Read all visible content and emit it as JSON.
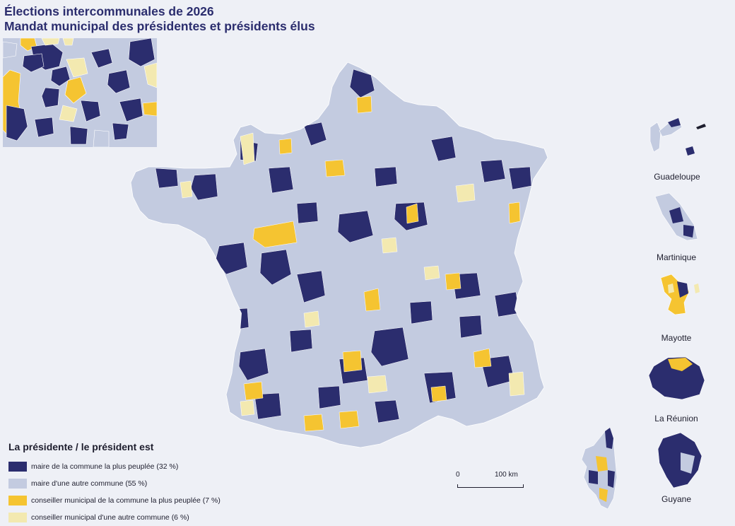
{
  "title": {
    "line1": "Élections intercommunales de 2026",
    "line2": "Mandat municipal des présidentes et présidents élus"
  },
  "colors": {
    "background": "#eef0f6",
    "navy": "#2b2d6e",
    "light": "#c3cbe0",
    "yellow": "#f5c431",
    "pale": "#f3e9b0",
    "border": "#ffffff"
  },
  "legend": {
    "title": "La présidente / le président est",
    "items": [
      {
        "label": "maire de la commune la plus peuplée (32 %)",
        "color": "#2b2d6e"
      },
      {
        "label": "maire d'une autre commune (55 %)",
        "color": "#c3cbe0"
      },
      {
        "label": "conseiller municipal de la commune la plus peuplée (7 %)",
        "color": "#f5c431"
      },
      {
        "label": "conseiller municipal d'une autre commune (6 %)",
        "color": "#f3e9b0"
      }
    ]
  },
  "scale": {
    "start": "0",
    "end": "100 km"
  },
  "overseas": {
    "guadeloupe": "Guadeloupe",
    "martinique": "Martinique",
    "mayotte": "Mayotte",
    "reunion": "La Réunion",
    "guyane": "Guyane"
  }
}
